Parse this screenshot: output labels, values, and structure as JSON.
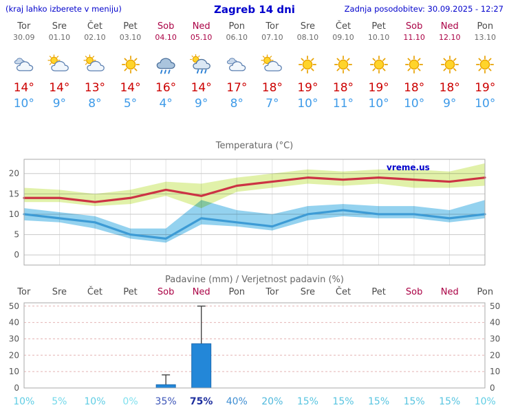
{
  "header": {
    "hint": "(kraj lahko izberete v meniju)",
    "title": "Zagreb 14 dni",
    "updated": "Zadnja posodobitev: 30.09.2025 - 12:27"
  },
  "days": [
    {
      "name": "Tor",
      "date": "30.09",
      "icon": "cloudy",
      "tmax": "14°",
      "tmin": "10°",
      "weekend": false
    },
    {
      "name": "Sre",
      "date": "01.10",
      "icon": "partly",
      "tmax": "14°",
      "tmin": "9°",
      "weekend": false
    },
    {
      "name": "Čet",
      "date": "02.10",
      "icon": "partly",
      "tmax": "13°",
      "tmin": "8°",
      "weekend": false
    },
    {
      "name": "Pet",
      "date": "03.10",
      "icon": "sunny",
      "tmax": "14°",
      "tmin": "5°",
      "weekend": false
    },
    {
      "name": "Sob",
      "date": "04.10",
      "icon": "rain",
      "tmax": "16°",
      "tmin": "4°",
      "weekend": true
    },
    {
      "name": "Ned",
      "date": "05.10",
      "icon": "showers",
      "tmax": "14°",
      "tmin": "9°",
      "weekend": true
    },
    {
      "name": "Pon",
      "date": "06.10",
      "icon": "cloudy",
      "tmax": "17°",
      "tmin": "8°",
      "weekend": false
    },
    {
      "name": "Tor",
      "date": "07.10",
      "icon": "partly",
      "tmax": "18°",
      "tmin": "7°",
      "weekend": false
    },
    {
      "name": "Sre",
      "date": "08.10",
      "icon": "sunny",
      "tmax": "19°",
      "tmin": "10°",
      "weekend": false
    },
    {
      "name": "Čet",
      "date": "09.10",
      "icon": "sunny",
      "tmax": "18°",
      "tmin": "11°",
      "weekend": false
    },
    {
      "name": "Pet",
      "date": "10.10",
      "icon": "sunny",
      "tmax": "19°",
      "tmin": "10°",
      "weekend": false
    },
    {
      "name": "Sob",
      "date": "11.10",
      "icon": "sunny",
      "tmax": "18°",
      "tmin": "10°",
      "weekend": true
    },
    {
      "name": "Ned",
      "date": "12.10",
      "icon": "sunny",
      "tmax": "18°",
      "tmin": "9°",
      "weekend": true
    },
    {
      "name": "Pon",
      "date": "13.10",
      "icon": "sunny",
      "tmax": "19°",
      "tmin": "10°",
      "weekend": false
    }
  ],
  "chart_data": [
    {
      "type": "line",
      "title": "Temperatura (°C)",
      "watermark": "vreme.us",
      "categories": [
        "30.09",
        "01.10",
        "02.10",
        "03.10",
        "04.10",
        "05.10",
        "06.10",
        "07.10",
        "08.10",
        "09.10",
        "10.10",
        "11.10",
        "12.10",
        "13.10"
      ],
      "yticks": [
        0,
        5,
        10,
        15,
        20
      ],
      "ylim": [
        -2.5,
        23.5
      ],
      "series": [
        {
          "name": "max temperature",
          "color": "#cc3344",
          "values": [
            14,
            14,
            13,
            14,
            16,
            14.5,
            17,
            18,
            19,
            18.5,
            19,
            18.5,
            18,
            19
          ]
        },
        {
          "name": "min temperature",
          "color": "#3d9bd5",
          "values": [
            10,
            9,
            8,
            5,
            4,
            9,
            8,
            7,
            10,
            11,
            10,
            10,
            9,
            10
          ]
        }
      ],
      "bands": [
        {
          "name": "max range",
          "color": "#dff0a4",
          "upper": [
            16.5,
            16,
            15,
            16,
            18,
            17.5,
            19,
            20,
            21,
            20.5,
            21,
            21,
            20.5,
            22.5
          ],
          "lower": [
            13,
            13,
            12,
            12.5,
            14.5,
            11.5,
            15.5,
            16.5,
            17.5,
            17,
            17.5,
            16.5,
            16.5,
            17
          ]
        },
        {
          "name": "min range",
          "color": "#8ed0ee",
          "upper": [
            11.5,
            10.5,
            9.5,
            6.5,
            6.5,
            13.5,
            11,
            10,
            12,
            12.5,
            12,
            12,
            11,
            13.5
          ],
          "lower": [
            8.5,
            8,
            6.5,
            4,
            3,
            7.5,
            7,
            6,
            8.5,
            9.5,
            9,
            9,
            8,
            9
          ]
        }
      ]
    },
    {
      "type": "bar",
      "title": "Padavine (mm) / Verjetnost padavin (%)",
      "categories": [
        "Tor",
        "Sre",
        "Čet",
        "Pet",
        "Sob",
        "Ned",
        "Pon",
        "Tor",
        "Sre",
        "Čet",
        "Pet",
        "Sob",
        "Ned",
        "Pon"
      ],
      "weekend": [
        false,
        false,
        false,
        false,
        true,
        true,
        false,
        false,
        false,
        false,
        false,
        true,
        true,
        false
      ],
      "values": [
        0,
        0,
        0,
        0,
        2,
        27,
        0,
        0,
        0,
        0,
        0,
        0,
        0,
        0
      ],
      "range_max": [
        0,
        0,
        0,
        0,
        8,
        50,
        0,
        0,
        0,
        0,
        0,
        0,
        0,
        0
      ],
      "bar_color": "#2387d8",
      "yticks": [
        0,
        10,
        20,
        30,
        40,
        50
      ],
      "ylim": [
        0,
        52
      ],
      "probabilities": [
        {
          "label": "10%",
          "color": "#5fcde4",
          "bold": false
        },
        {
          "label": "5%",
          "color": "#72d8ea",
          "bold": false
        },
        {
          "label": "10%",
          "color": "#5fcde4",
          "bold": false
        },
        {
          "label": "0%",
          "color": "#80e0ee",
          "bold": false
        },
        {
          "label": "35%",
          "color": "#3c55b8",
          "bold": false
        },
        {
          "label": "75%",
          "color": "#1e2f9e",
          "bold": true
        },
        {
          "label": "40%",
          "color": "#3f8ed2",
          "bold": false
        },
        {
          "label": "20%",
          "color": "#4fb8dc",
          "bold": false
        },
        {
          "label": "15%",
          "color": "#57c4e0",
          "bold": false
        },
        {
          "label": "15%",
          "color": "#57c4e0",
          "bold": false
        },
        {
          "label": "15%",
          "color": "#57c4e0",
          "bold": false
        },
        {
          "label": "15%",
          "color": "#57c4e0",
          "bold": false
        },
        {
          "label": "15%",
          "color": "#57c4e0",
          "bold": false
        },
        {
          "label": "10%",
          "color": "#5fcde4",
          "bold": false
        }
      ]
    }
  ],
  "colors": {
    "accent": "#0000cc",
    "weekend": "#aa0044",
    "tmax": "#cc0000",
    "tmin": "#3d9ae8"
  }
}
